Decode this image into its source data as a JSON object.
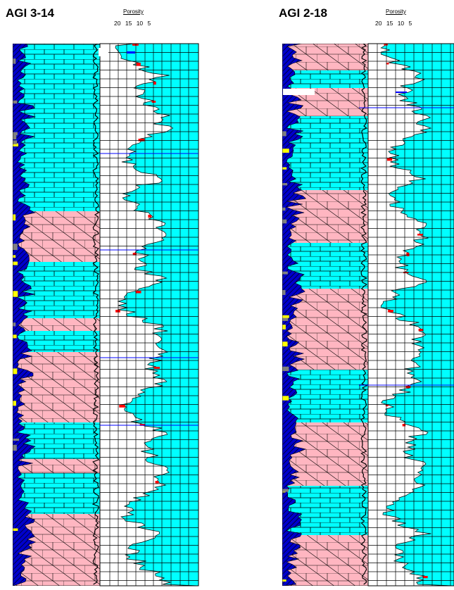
{
  "wells": [
    {
      "name": "AGI 3-14",
      "porosity_label": "Porosity",
      "porosity_ticks": [
        "20",
        "15",
        "10",
        "5"
      ]
    },
    {
      "name": "AGI 2-18",
      "porosity_label": "Porosity",
      "porosity_ticks": [
        "20",
        "15",
        "10",
        "5"
      ]
    }
  ],
  "colors": {
    "limestone": "#00ffff",
    "anhydrite": "#ffb6c1",
    "dolomite_hatch": "#0000cc",
    "dark_dolomite": "#0000ff",
    "shale": "#808080",
    "sand": "#ffff00",
    "porosity_fill": "#00ffff",
    "high_porosity": "#ff0000",
    "marker_line": "#0000ff"
  }
}
